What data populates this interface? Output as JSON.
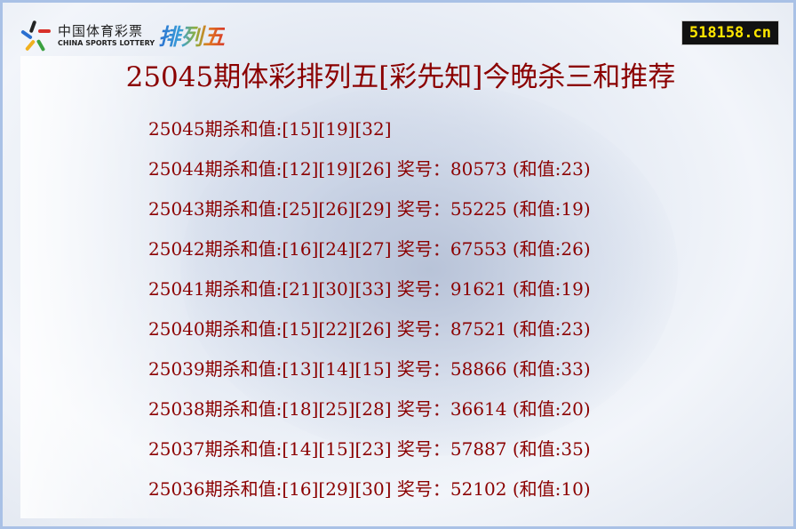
{
  "logo": {
    "cn": "中国体育彩票",
    "en": "CHINA SPORTS LOTTERY",
    "game": "排列五"
  },
  "site": "518158.cn",
  "title": "25045期体彩排列五[彩先知]今晚杀三和推荐",
  "rows": [
    "25045期杀和值:[15][19][32]",
    "25044期杀和值:[12][19][26] 奖号：80573 (和值:23)",
    "25043期杀和值:[25][26][29] 奖号：55225 (和值:19)",
    "25042期杀和值:[16][24][27] 奖号：67553 (和值:26)",
    "25041期杀和值:[21][30][33] 奖号：91621 (和值:19)",
    "25040期杀和值:[15][22][26] 奖号：87521 (和值:23)",
    "25039期杀和值:[13][14][15] 奖号：58866 (和值:33)",
    "25038期杀和值:[18][25][28] 奖号：36614 (和值:20)",
    "25037期杀和值:[14][15][23] 奖号：57887 (和值:35)",
    "25036期杀和值:[16][29][30] 奖号：52102 (和值:10)"
  ]
}
